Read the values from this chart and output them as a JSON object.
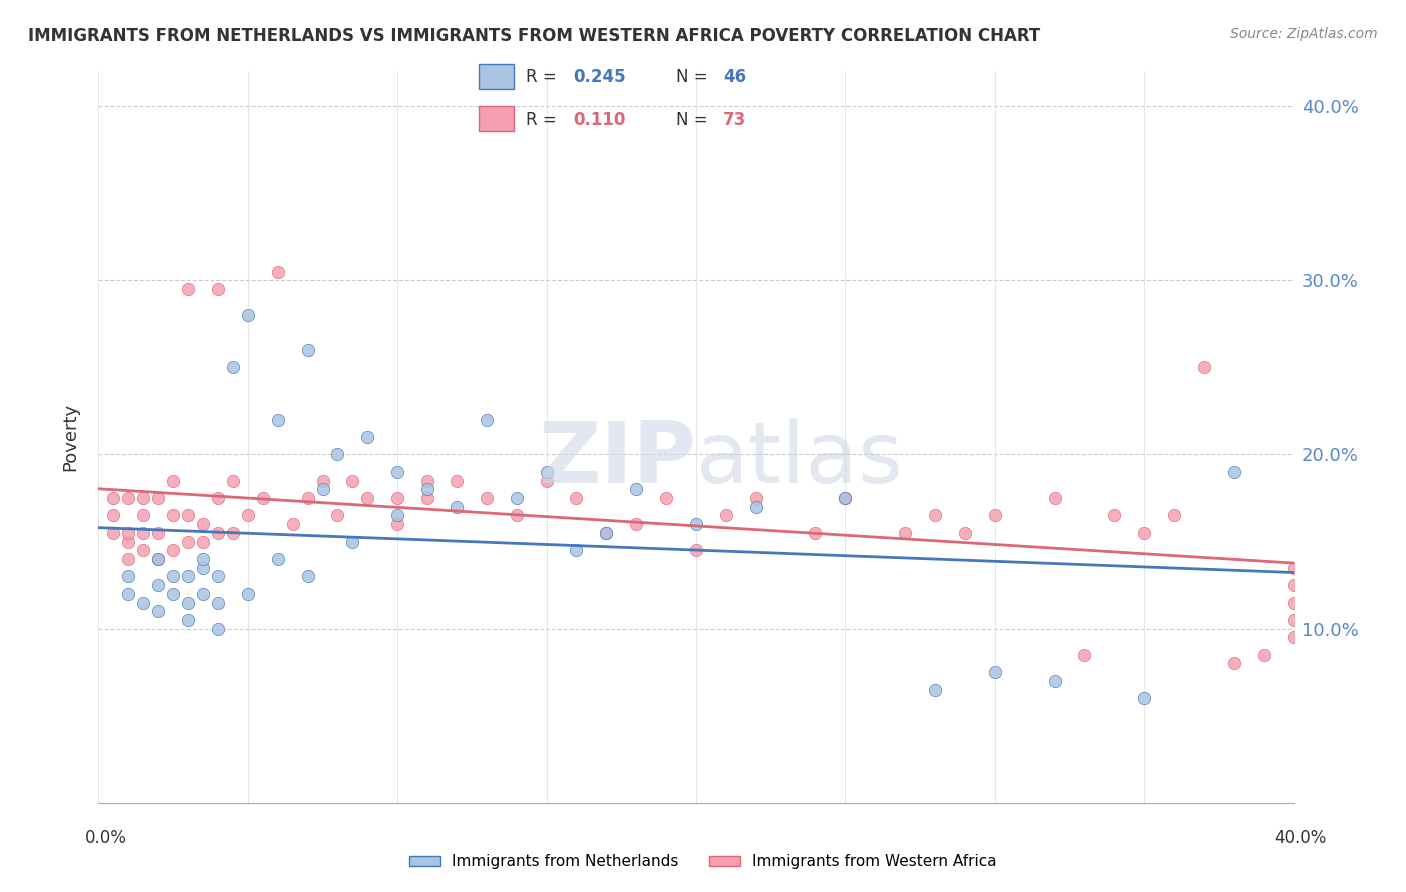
{
  "title": "IMMIGRANTS FROM NETHERLANDS VS IMMIGRANTS FROM WESTERN AFRICA POVERTY CORRELATION CHART",
  "source": "Source: ZipAtlas.com",
  "ylabel": "Poverty",
  "y_ticks": [
    0.0,
    0.1,
    0.2,
    0.3,
    0.4
  ],
  "y_tick_labels": [
    "",
    "10.0%",
    "20.0%",
    "30.0%",
    "40.0%"
  ],
  "xlim": [
    0.0,
    0.4
  ],
  "ylim": [
    0.0,
    0.42
  ],
  "color_blue": "#a8c4e0",
  "color_pink": "#f4a0b0",
  "line_color_blue": "#4477bb",
  "line_color_pink": "#dd6677",
  "blue_scatter_x": [
    0.01,
    0.01,
    0.015,
    0.02,
    0.02,
    0.02,
    0.025,
    0.025,
    0.03,
    0.03,
    0.03,
    0.035,
    0.035,
    0.035,
    0.04,
    0.04,
    0.04,
    0.045,
    0.05,
    0.05,
    0.06,
    0.06,
    0.07,
    0.07,
    0.075,
    0.08,
    0.085,
    0.09,
    0.1,
    0.1,
    0.11,
    0.12,
    0.13,
    0.14,
    0.15,
    0.16,
    0.17,
    0.18,
    0.2,
    0.22,
    0.25,
    0.28,
    0.3,
    0.32,
    0.35,
    0.38
  ],
  "blue_scatter_y": [
    0.12,
    0.13,
    0.115,
    0.11,
    0.125,
    0.14,
    0.12,
    0.13,
    0.105,
    0.115,
    0.13,
    0.12,
    0.135,
    0.14,
    0.1,
    0.115,
    0.13,
    0.25,
    0.12,
    0.28,
    0.14,
    0.22,
    0.13,
    0.26,
    0.18,
    0.2,
    0.15,
    0.21,
    0.165,
    0.19,
    0.18,
    0.17,
    0.22,
    0.175,
    0.19,
    0.145,
    0.155,
    0.18,
    0.16,
    0.17,
    0.175,
    0.065,
    0.075,
    0.07,
    0.06,
    0.19
  ],
  "pink_scatter_x": [
    0.005,
    0.005,
    0.005,
    0.01,
    0.01,
    0.01,
    0.01,
    0.015,
    0.015,
    0.015,
    0.015,
    0.02,
    0.02,
    0.02,
    0.025,
    0.025,
    0.025,
    0.03,
    0.03,
    0.03,
    0.035,
    0.035,
    0.04,
    0.04,
    0.04,
    0.045,
    0.045,
    0.05,
    0.055,
    0.06,
    0.065,
    0.07,
    0.075,
    0.08,
    0.085,
    0.09,
    0.1,
    0.1,
    0.11,
    0.11,
    0.12,
    0.13,
    0.14,
    0.15,
    0.16,
    0.17,
    0.18,
    0.19,
    0.2,
    0.21,
    0.22,
    0.24,
    0.25,
    0.27,
    0.28,
    0.29,
    0.3,
    0.32,
    0.33,
    0.34,
    0.35,
    0.36,
    0.37,
    0.38,
    0.39,
    0.4,
    0.4,
    0.4,
    0.4,
    0.4
  ],
  "pink_scatter_y": [
    0.155,
    0.165,
    0.175,
    0.14,
    0.15,
    0.155,
    0.175,
    0.145,
    0.155,
    0.165,
    0.175,
    0.14,
    0.155,
    0.175,
    0.145,
    0.165,
    0.185,
    0.15,
    0.165,
    0.295,
    0.15,
    0.16,
    0.155,
    0.175,
    0.295,
    0.155,
    0.185,
    0.165,
    0.175,
    0.305,
    0.16,
    0.175,
    0.185,
    0.165,
    0.185,
    0.175,
    0.16,
    0.175,
    0.175,
    0.185,
    0.185,
    0.175,
    0.165,
    0.185,
    0.175,
    0.155,
    0.16,
    0.175,
    0.145,
    0.165,
    0.175,
    0.155,
    0.175,
    0.155,
    0.165,
    0.155,
    0.165,
    0.175,
    0.085,
    0.165,
    0.155,
    0.165,
    0.25,
    0.08,
    0.085,
    0.095,
    0.105,
    0.115,
    0.125,
    0.135
  ]
}
